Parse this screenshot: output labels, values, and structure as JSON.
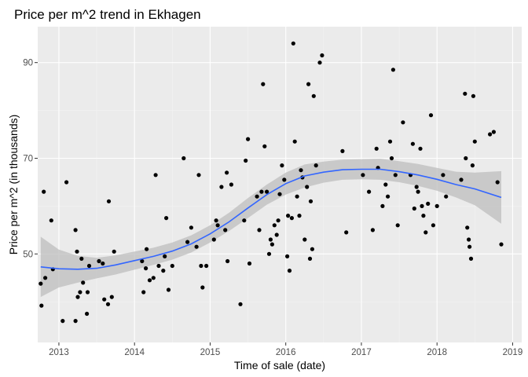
{
  "chart_data": {
    "type": "scatter",
    "title": "Price per m^2 trend in Ekhagen",
    "xlabel": "Time of sale (date)",
    "ylabel": "Price per m^2 (in thousands)",
    "x_ticks": [
      "2013",
      "2014",
      "2015",
      "2016",
      "2017",
      "2018",
      "2019"
    ],
    "y_ticks": [
      "50",
      "70",
      "90"
    ],
    "xlim": [
      2012.72,
      2019.12
    ],
    "ylim": [
      31.5,
      97.5
    ],
    "grid": true,
    "legend": "none",
    "colors": {
      "panel": "#ebebeb",
      "grid_major": "#ffffff",
      "grid_minor": "#f3f3f3",
      "point": "#000000",
      "smooth_line": "#3366ff",
      "ribbon": "#bebebe"
    },
    "series": [
      {
        "points": [
          [
            2012.76,
            43.8
          ],
          [
            2012.77,
            39.2
          ],
          [
            2012.8,
            63.0
          ],
          [
            2012.82,
            45.0
          ],
          [
            2012.9,
            57.0
          ],
          [
            2012.92,
            46.8
          ],
          [
            2013.05,
            36.0
          ],
          [
            2013.1,
            65.0
          ],
          [
            2013.22,
            36.0
          ],
          [
            2013.22,
            55.0
          ],
          [
            2013.24,
            50.5
          ],
          [
            2013.25,
            41.0
          ],
          [
            2013.28,
            42.0
          ],
          [
            2013.3,
            49.0
          ],
          [
            2013.32,
            44.0
          ],
          [
            2013.37,
            37.5
          ],
          [
            2013.38,
            42.0
          ],
          [
            2013.4,
            47.5
          ],
          [
            2013.53,
            48.5
          ],
          [
            2013.58,
            48.0
          ],
          [
            2013.6,
            40.5
          ],
          [
            2013.65,
            39.5
          ],
          [
            2013.66,
            61.0
          ],
          [
            2013.7,
            41.0
          ],
          [
            2013.73,
            50.5
          ],
          [
            2014.1,
            48.5
          ],
          [
            2014.12,
            42.0
          ],
          [
            2014.15,
            47.0
          ],
          [
            2014.16,
            51.0
          ],
          [
            2014.2,
            44.5
          ],
          [
            2014.25,
            45.0
          ],
          [
            2014.28,
            66.5
          ],
          [
            2014.32,
            47.5
          ],
          [
            2014.38,
            46.5
          ],
          [
            2014.4,
            49.5
          ],
          [
            2014.42,
            57.5
          ],
          [
            2014.45,
            42.5
          ],
          [
            2014.5,
            47.5
          ],
          [
            2014.65,
            70.0
          ],
          [
            2014.7,
            52.5
          ],
          [
            2014.75,
            55.5
          ],
          [
            2014.82,
            51.5
          ],
          [
            2014.85,
            66.5
          ],
          [
            2014.88,
            47.5
          ],
          [
            2014.9,
            43.0
          ],
          [
            2014.95,
            47.5
          ],
          [
            2015.05,
            53.0
          ],
          [
            2015.08,
            57.0
          ],
          [
            2015.1,
            56.0
          ],
          [
            2015.15,
            64.0
          ],
          [
            2015.2,
            55.0
          ],
          [
            2015.22,
            67.0
          ],
          [
            2015.23,
            48.5
          ],
          [
            2015.28,
            64.5
          ],
          [
            2015.4,
            39.5
          ],
          [
            2015.45,
            57.0
          ],
          [
            2015.47,
            69.5
          ],
          [
            2015.5,
            74.0
          ],
          [
            2015.52,
            48.0
          ],
          [
            2015.62,
            62.0
          ],
          [
            2015.65,
            55.0
          ],
          [
            2015.68,
            63.0
          ],
          [
            2015.7,
            85.5
          ],
          [
            2015.72,
            72.5
          ],
          [
            2015.75,
            63.0
          ],
          [
            2015.78,
            50.0
          ],
          [
            2015.8,
            53.0
          ],
          [
            2015.82,
            52.0
          ],
          [
            2015.85,
            56.0
          ],
          [
            2015.88,
            54.0
          ],
          [
            2015.9,
            57.0
          ],
          [
            2015.92,
            62.5
          ],
          [
            2015.95,
            68.5
          ],
          [
            2015.98,
            65.5
          ],
          [
            2016.02,
            49.5
          ],
          [
            2016.03,
            58.0
          ],
          [
            2016.05,
            46.5
          ],
          [
            2016.08,
            57.5
          ],
          [
            2016.1,
            94.0
          ],
          [
            2016.12,
            73.5
          ],
          [
            2016.15,
            62.0
          ],
          [
            2016.18,
            58.0
          ],
          [
            2016.2,
            67.5
          ],
          [
            2016.22,
            66.0
          ],
          [
            2016.25,
            53.0
          ],
          [
            2016.28,
            64.0
          ],
          [
            2016.3,
            85.5
          ],
          [
            2016.32,
            49.0
          ],
          [
            2016.33,
            61.0
          ],
          [
            2016.35,
            51.0
          ],
          [
            2016.37,
            83.0
          ],
          [
            2016.4,
            68.5
          ],
          [
            2016.45,
            90.0
          ],
          [
            2016.48,
            91.5
          ],
          [
            2016.75,
            71.5
          ],
          [
            2016.8,
            54.5
          ],
          [
            2017.02,
            66.5
          ],
          [
            2017.1,
            63.0
          ],
          [
            2017.15,
            55.0
          ],
          [
            2017.2,
            72.0
          ],
          [
            2017.22,
            68.0
          ],
          [
            2017.28,
            60.0
          ],
          [
            2017.32,
            64.5
          ],
          [
            2017.35,
            62.0
          ],
          [
            2017.38,
            73.5
          ],
          [
            2017.4,
            70.0
          ],
          [
            2017.42,
            88.5
          ],
          [
            2017.45,
            66.5
          ],
          [
            2017.48,
            56.0
          ],
          [
            2017.55,
            77.5
          ],
          [
            2017.65,
            66.5
          ],
          [
            2017.68,
            73.0
          ],
          [
            2017.7,
            59.5
          ],
          [
            2017.73,
            64.0
          ],
          [
            2017.75,
            63.0
          ],
          [
            2017.78,
            72.0
          ],
          [
            2017.8,
            60.0
          ],
          [
            2017.82,
            58.0
          ],
          [
            2017.85,
            54.5
          ],
          [
            2017.88,
            60.5
          ],
          [
            2017.92,
            79.0
          ],
          [
            2017.95,
            56.0
          ],
          [
            2018.0,
            60.0
          ],
          [
            2018.08,
            66.5
          ],
          [
            2018.12,
            62.0
          ],
          [
            2018.32,
            65.5
          ],
          [
            2018.37,
            83.5
          ],
          [
            2018.38,
            70.0
          ],
          [
            2018.4,
            55.5
          ],
          [
            2018.42,
            53.0
          ],
          [
            2018.43,
            51.5
          ],
          [
            2018.45,
            49.0
          ],
          [
            2018.47,
            68.5
          ],
          [
            2018.48,
            83.0
          ],
          [
            2018.5,
            73.5
          ],
          [
            2018.7,
            75.0
          ],
          [
            2018.75,
            75.5
          ],
          [
            2018.8,
            65.0
          ],
          [
            2018.85,
            52.0
          ]
        ]
      }
    ],
    "smooth": {
      "x": [
        2012.76,
        2013.0,
        2013.25,
        2013.5,
        2013.75,
        2014.0,
        2014.25,
        2014.5,
        2014.75,
        2015.0,
        2015.25,
        2015.5,
        2015.75,
        2016.0,
        2016.25,
        2016.5,
        2016.75,
        2017.0,
        2017.25,
        2017.5,
        2017.75,
        2018.0,
        2018.25,
        2018.5,
        2018.85
      ],
      "fit": [
        47.3,
        46.9,
        46.8,
        47.0,
        47.7,
        48.6,
        49.5,
        50.6,
        52.1,
        54.2,
        56.7,
        59.6,
        62.4,
        64.7,
        66.3,
        67.1,
        67.6,
        67.7,
        67.7,
        67.2,
        66.5,
        65.6,
        64.5,
        63.6,
        61.8
      ],
      "lower": [
        41.0,
        43.0,
        44.0,
        44.9,
        45.7,
        46.7,
        47.7,
        48.8,
        50.3,
        52.4,
        54.8,
        57.5,
        60.3,
        62.4,
        63.9,
        64.9,
        65.5,
        65.6,
        65.5,
        65.0,
        64.2,
        63.2,
        61.8,
        60.2,
        56.3
      ],
      "upper": [
        53.6,
        50.9,
        49.6,
        49.2,
        49.7,
        50.5,
        51.3,
        52.4,
        53.9,
        56.0,
        58.6,
        61.7,
        64.5,
        67.0,
        68.7,
        69.3,
        69.7,
        69.8,
        69.9,
        69.4,
        68.8,
        68.0,
        67.2,
        67.0,
        67.3
      ]
    }
  }
}
